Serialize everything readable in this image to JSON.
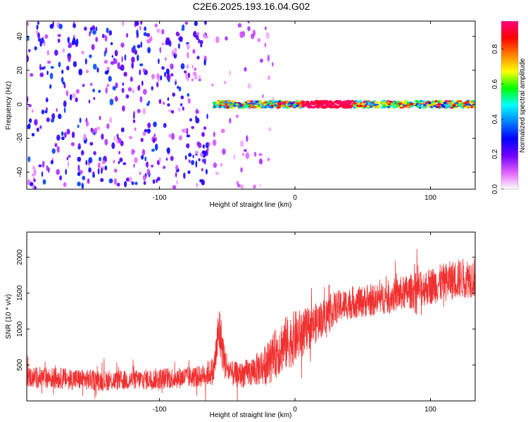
{
  "title": "C2E6.2025.193.16.04.G02",
  "chart_data": [
    {
      "type": "heatmap",
      "xlabel": "Height of straight line (km)",
      "ylabel": "Frequency (Hz)",
      "xlim": [
        -198,
        133
      ],
      "ylim": [
        -50,
        49
      ],
      "xticks": [
        -100,
        0,
        100
      ],
      "yticks": [
        -40,
        -20,
        0,
        20,
        40
      ],
      "colorbar": {
        "label": "Normalized spectral amplitude",
        "range": [
          0,
          0.96
        ],
        "ticks": [
          0.0,
          0.2,
          0.4,
          0.6,
          0.8
        ],
        "colors": [
          "#ffffff",
          "#e060ff",
          "#7000ff",
          "#0000ff",
          "#0080ff",
          "#00ffff",
          "#00ff00",
          "#ffff00",
          "#ff8000",
          "#ff0000",
          "#ff0080"
        ]
      },
      "regions": [
        {
          "name": "scattered noise",
          "x": [
            -198,
            -64
          ],
          "freq": [
            -50,
            49
          ],
          "amplitude": [
            0.05,
            0.35
          ]
        },
        {
          "name": "sparse noise",
          "x": [
            -64,
            -15
          ],
          "freq": [
            -50,
            49
          ],
          "amplitude": [
            0.03,
            0.15
          ]
        },
        {
          "name": "carrier line",
          "x": [
            -60,
            133
          ],
          "freq": [
            -2,
            2
          ],
          "amplitude": [
            0.3,
            0.96
          ]
        }
      ],
      "carrier_peak": {
        "x": [
          5,
          42
        ],
        "freq": 0,
        "amplitude": 0.96
      }
    },
    {
      "type": "line",
      "xlabel": "Height of straight line (km)",
      "ylabel": "SNR (10 * v/v)",
      "xlim": [
        -198,
        133
      ],
      "ylim": [
        0,
        2350
      ],
      "xticks": [
        -100,
        0,
        100
      ],
      "yticks": [
        500,
        1000,
        1500,
        2000
      ],
      "color": "#f03030",
      "series": [
        {
          "x": [
            -198,
            -180,
            -160,
            -140,
            -120,
            -100,
            -80,
            -70,
            -60,
            -56,
            -52,
            -48,
            -40,
            -30,
            -20,
            -10,
            0,
            10,
            20,
            30,
            40,
            50,
            60,
            70,
            80,
            90,
            100,
            110,
            120,
            133
          ],
          "y_mean": [
            330,
            320,
            300,
            280,
            290,
            310,
            330,
            340,
            420,
            1000,
            550,
            380,
            360,
            420,
            520,
            760,
            880,
            1000,
            1150,
            1300,
            1360,
            1380,
            1400,
            1460,
            1500,
            1540,
            1600,
            1650,
            1700,
            1720
          ],
          "y_spread": [
            150,
            150,
            150,
            140,
            140,
            150,
            150,
            150,
            200,
            400,
            250,
            180,
            180,
            220,
            300,
            380,
            380,
            300,
            260,
            230,
            220,
            220,
            220,
            230,
            240,
            250,
            260,
            270,
            280,
            280
          ]
        }
      ]
    }
  ]
}
